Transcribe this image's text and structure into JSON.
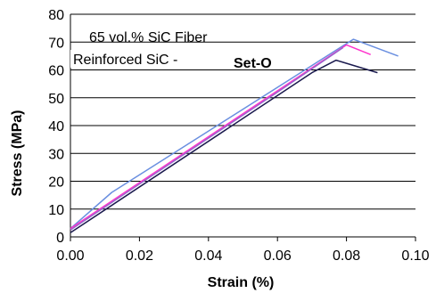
{
  "chart_data": {
    "type": "line",
    "title": "",
    "xlabel": "Strain (%)",
    "ylabel": "Stress (MPa)",
    "xlim": [
      0,
      0.1
    ],
    "ylim": [
      0,
      80
    ],
    "x_ticks": [
      "0.00",
      "0.02",
      "0.04",
      "0.06",
      "0.08",
      "0.10"
    ],
    "y_ticks": [
      "0",
      "10",
      "20",
      "30",
      "40",
      "50",
      "60",
      "70",
      "80"
    ],
    "grid": "horizontal",
    "legend": "none",
    "annotations": [
      {
        "text": "65 vol.% SiC Fiber"
      },
      {
        "text": "Reinforced SiC - "
      },
      {
        "text": "Set-O"
      }
    ],
    "series": [
      {
        "color": "#6a8fe0",
        "x": [
          0.0,
          0.012,
          0.082,
          0.095
        ],
        "y": [
          3,
          16,
          71,
          65
        ]
      },
      {
        "color": "#ff33cc",
        "x": [
          0.0,
          0.08,
          0.087
        ],
        "y": [
          3,
          69,
          65.5
        ]
      },
      {
        "color": "#9966cc",
        "x": [
          0.0,
          0.06,
          0.079
        ],
        "y": [
          2.5,
          52,
          68
        ]
      },
      {
        "color": "#1a1a4e",
        "x": [
          0.0,
          0.07,
          0.077,
          0.089
        ],
        "y": [
          1.5,
          59,
          63.5,
          59
        ]
      }
    ]
  }
}
